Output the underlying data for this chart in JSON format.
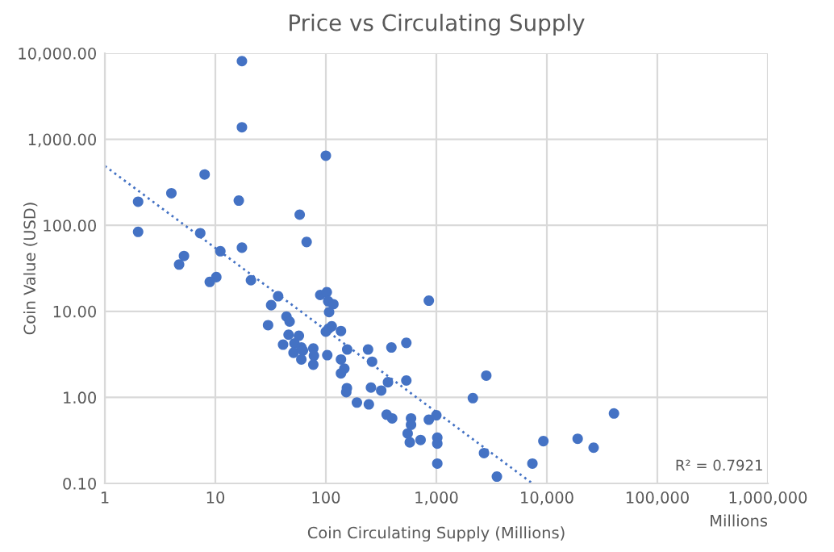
{
  "chart_data": {
    "type": "scatter",
    "title": "Price vs Circulating Supply",
    "xlabel": "Coin Circulating Supply (Millions)",
    "ylabel": "Coin Value (USD)",
    "log": "xy",
    "grid": true,
    "marker": "circle",
    "xlim": [
      1,
      1000000
    ],
    "ylim": [
      0.1,
      10000
    ],
    "xticks": [
      1,
      10,
      100,
      {
        "value": 1000,
        "label": "1,000"
      },
      {
        "value": 10000,
        "label": "10,000"
      },
      {
        "value": 100000,
        "label": "100,000"
      },
      {
        "value": 1000000,
        "label": "1,000,000"
      }
    ],
    "yticks": [
      {
        "value": 0.1,
        "label": "0.10"
      },
      {
        "value": 1,
        "label": "1.00"
      },
      {
        "value": 10,
        "label": "10.00"
      },
      {
        "value": 100,
        "label": "100.00"
      },
      {
        "value": 1000,
        "label": "1,000.00"
      },
      {
        "value": 10000,
        "label": "10,000.00"
      }
    ],
    "annotations": [
      "Millions",
      "R² = 0.7921"
    ],
    "series": [
      {
        "color": "#4472c4",
        "x": [
          17.4,
          17.4,
          100,
          8,
          4,
          2,
          16.3,
          58,
          2,
          7.3,
          67,
          11.1,
          17.4,
          5.2,
          4.7,
          10.2,
          8.9,
          21,
          37,
          32,
          30,
          44,
          47,
          46,
          57,
          41,
          52,
          51,
          60,
          62,
          60,
          77,
          78,
          77,
          89,
          102,
          105,
          117,
          107,
          113,
          106,
          100,
          137,
          103,
          137,
          156,
          147,
          137,
          155,
          153,
          191,
          241,
          262,
          256,
          245,
          317,
          365,
          392,
          535,
          535,
          355,
          398,
          550,
          590,
          590,
          575,
          855,
          2830,
          2140,
          720,
          855,
          1000,
          1020,
          1020,
          1020,
          2700,
          3530,
          7400,
          9300,
          19000,
          26500,
          40500
        ],
        "values": [
          8100,
          1380,
          645,
          390,
          236,
          188,
          194,
          133,
          84,
          81,
          64,
          50,
          55,
          44,
          35,
          25,
          22,
          23,
          15,
          11.8,
          6.9,
          8.7,
          7.6,
          5.35,
          5.2,
          4.1,
          4.25,
          3.3,
          3.8,
          3.5,
          2.76,
          3.7,
          3.05,
          2.4,
          15.5,
          16.7,
          13.1,
          12.1,
          9.8,
          6.7,
          6.3,
          5.8,
          5.9,
          3.1,
          2.76,
          3.6,
          2.16,
          1.9,
          1.28,
          1.15,
          0.87,
          3.6,
          2.6,
          1.3,
          0.83,
          1.2,
          1.5,
          3.8,
          4.3,
          1.57,
          0.63,
          0.57,
          0.38,
          0.57,
          0.48,
          0.3,
          13.3,
          1.79,
          0.98,
          0.32,
          0.55,
          0.62,
          0.34,
          0.29,
          0.17,
          0.225,
          0.12,
          0.17,
          0.31,
          0.33,
          0.26,
          0.65
        ]
      },
      {
        "type": "line",
        "color": "#4472c4",
        "line_style": "dotted",
        "marker": "none",
        "x": [
          1,
          7400
        ],
        "values": [
          490,
          0.1
        ]
      }
    ]
  }
}
